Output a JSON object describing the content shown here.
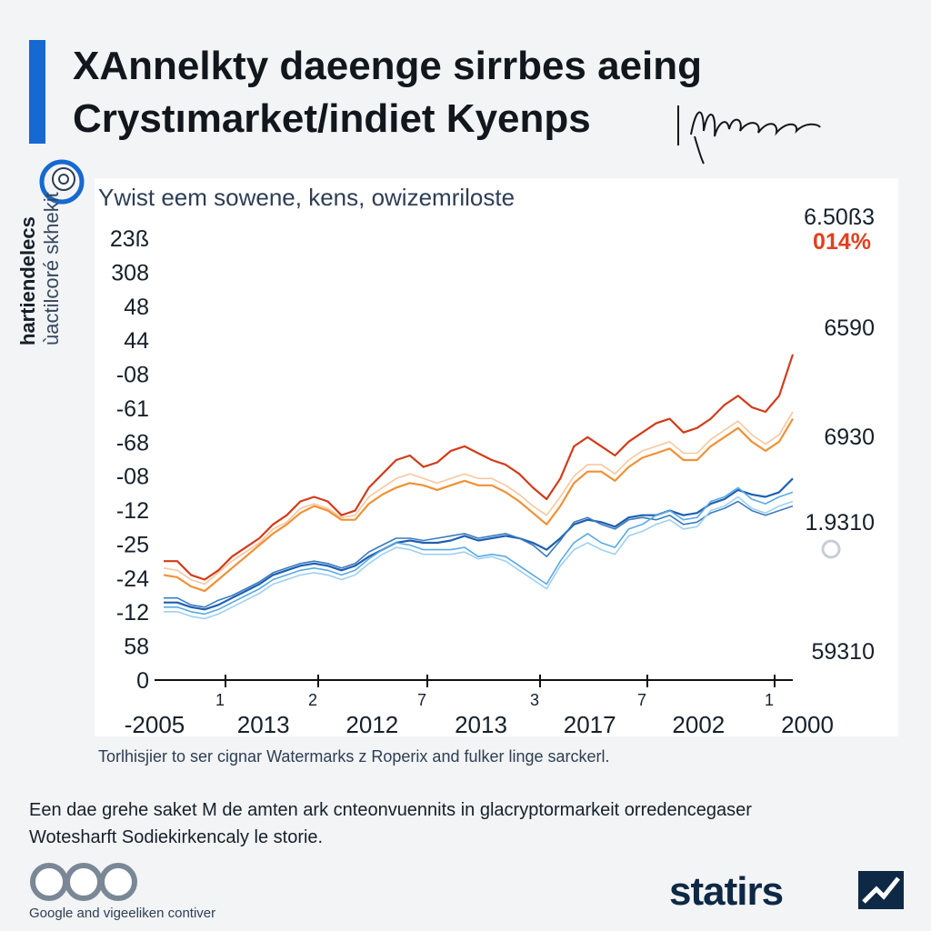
{
  "header": {
    "title_line1": "XAnnelkty daeenge sirrbes aeing",
    "title_line2": "Crystımarket/indiet Kyenps",
    "signature": "Mrana"
  },
  "subtitle": "Ywist eem sowene, kens, owizemriloste",
  "ylabel": {
    "line1": "hartiendelecs",
    "line2": "ùactilcoré skhekit"
  },
  "footnote": "Torlhisjier to ser cignar Watermarks z Roperix and fulker linge sarckerl.",
  "description": {
    "line1": "Een dae grehe saket M de amten ark cnteonvuennits in glacryptormarkeit orredencegaser",
    "line2": "Wotesharft Sodiekirkencaly le storie."
  },
  "source": "Google and vigeeliken contiver",
  "brand": {
    "name": "statirs"
  },
  "colors": {
    "accent": "#1569d0",
    "brand": "#0e2945"
  },
  "chart_data": {
    "type": "line",
    "title": "",
    "xlabel": "",
    "ylabel": "hartiendelecs ùactilcoré skhekit",
    "x_tick_labels": [
      "-2005",
      "2013",
      "2012",
      "2013",
      "2017",
      "2002",
      "2000"
    ],
    "x_minor_tick_labels": [
      "1",
      "2",
      "7",
      "3",
      "7",
      "1"
    ],
    "y_tick_labels_left": [
      "23ß",
      "308",
      "48",
      "44",
      "-08",
      "-61",
      "-68",
      "-08",
      "-12",
      "-25",
      "-24",
      "-12",
      "58",
      "0"
    ],
    "y_tick_labels_right": [
      "6.50ß3",
      "6590",
      "6930",
      "1.9310",
      "59310"
    ],
    "end_badge": "014%",
    "ylim": [
      0,
      100
    ],
    "grid": false,
    "legend": "none",
    "series": [
      {
        "color": "#d13c1a",
        "values": [
          28,
          28,
          22,
          20,
          24,
          30,
          34,
          38,
          44,
          48,
          54,
          56,
          54,
          48,
          50,
          60,
          66,
          72,
          74,
          69,
          71,
          76,
          78,
          75,
          72,
          70,
          66,
          60,
          55,
          64,
          78,
          82,
          78,
          74,
          80,
          84,
          88,
          90,
          84,
          86,
          90,
          96,
          100,
          95,
          93,
          100,
          118
        ]
      },
      {
        "color": "#ef9136",
        "values": [
          22,
          21,
          17,
          15,
          20,
          25,
          30,
          35,
          40,
          44,
          49,
          52,
          50,
          46,
          46,
          53,
          57,
          60,
          62,
          61,
          59,
          61,
          63,
          61,
          61,
          58,
          54,
          49,
          44,
          52,
          62,
          67,
          67,
          63,
          69,
          73,
          75,
          77,
          72,
          72,
          78,
          82,
          86,
          80,
          76,
          80,
          90
        ]
      },
      {
        "color": "#f7c7a0",
        "values": [
          25,
          24,
          20,
          18,
          23,
          28,
          32,
          36,
          42,
          45,
          51,
          53,
          51,
          47,
          48,
          56,
          60,
          64,
          66,
          64,
          62,
          64,
          66,
          64,
          64,
          61,
          57,
          52,
          48,
          56,
          65,
          70,
          70,
          66,
          72,
          76,
          78,
          80,
          75,
          75,
          81,
          85,
          89,
          83,
          79,
          83,
          93
        ]
      },
      {
        "color": "#1f5fb0",
        "values": [
          10,
          10,
          8,
          7,
          9,
          12,
          15,
          18,
          22,
          24,
          26,
          27,
          26,
          24,
          26,
          30,
          33,
          36,
          37,
          36,
          36,
          37,
          39,
          37,
          38,
          39,
          38,
          36,
          33,
          38,
          44,
          46,
          45,
          43,
          47,
          48,
          48,
          50,
          48,
          49,
          53,
          55,
          59,
          57,
          56,
          58,
          64
        ]
      },
      {
        "color": "#3a7cc0",
        "values": [
          12,
          12,
          9,
          8,
          11,
          13,
          16,
          19,
          23,
          25,
          27,
          28,
          27,
          25,
          27,
          32,
          35,
          38,
          38,
          37,
          38,
          39,
          40,
          38,
          39,
          40,
          38,
          35,
          30,
          37,
          45,
          47,
          44,
          42,
          46,
          47,
          46,
          48,
          44,
          45,
          49,
          51,
          54,
          50,
          48,
          50,
          52
        ]
      },
      {
        "color": "#5aaae6",
        "values": [
          8,
          8,
          6,
          5,
          7,
          10,
          13,
          16,
          20,
          22,
          24,
          25,
          24,
          22,
          24,
          29,
          33,
          36,
          35,
          33,
          33,
          33,
          34,
          30,
          31,
          30,
          26,
          22,
          18,
          28,
          36,
          40,
          36,
          34,
          42,
          44,
          48,
          50,
          46,
          47,
          54,
          56,
          60,
          55,
          53,
          56,
          58
        ]
      },
      {
        "color": "#9fd0f2",
        "values": [
          6,
          6,
          4,
          3,
          5,
          8,
          11,
          14,
          18,
          20,
          22,
          23,
          22,
          20,
          22,
          27,
          31,
          34,
          33,
          31,
          31,
          31,
          32,
          29,
          30,
          28,
          24,
          20,
          16,
          26,
          33,
          36,
          33,
          31,
          39,
          41,
          44,
          46,
          42,
          43,
          50,
          52,
          56,
          51,
          49,
          52,
          54
        ]
      }
    ]
  }
}
